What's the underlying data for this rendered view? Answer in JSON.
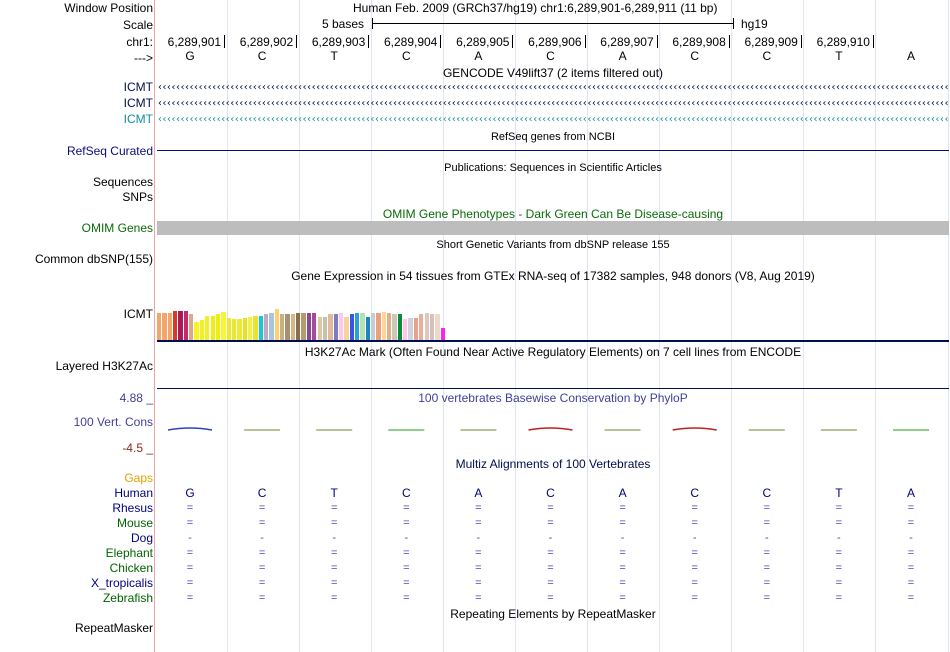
{
  "labels": {
    "window_position": "Window Position",
    "scale": "Scale",
    "chrom": "chr1:",
    "strand": "--->",
    "icmt_1": "ICMT",
    "icmt_2": "ICMT",
    "icmt_3": "ICMT",
    "refseq": "RefSeq Curated",
    "sequences": "Sequences",
    "snps": "SNPs",
    "omim": "OMIM Genes",
    "dbsnp": "Common dbSNP(155)",
    "gtex_gene": "ICMT",
    "h3k27ac": "Layered H3K27Ac",
    "cons_max": "4.88 _",
    "cons_label": "100 Vert. Cons",
    "cons_min": "-4.5 _",
    "gaps": "Gaps",
    "repeatmasker": "RepeatMasker"
  },
  "header": {
    "assembly_text": "Human Feb. 2009 (GRCh37/hg19)   chr1:6,289,901-6,289,911 (11 bp)",
    "scale_text": "5 bases",
    "scale_db": "hg19"
  },
  "positions": [
    "6,289,901",
    "6,289,902",
    "6,289,903",
    "6,289,904",
    "6,289,905",
    "6,289,906",
    "6,289,907",
    "6,289,908",
    "6,289,909",
    "6,289,910"
  ],
  "sequence": [
    "G",
    "C",
    "T",
    "C",
    "A",
    "C",
    "A",
    "C",
    "C",
    "T",
    "A"
  ],
  "track_titles": {
    "gencode": "GENCODE V49lift37 (2 items filtered out)",
    "refseq": "RefSeq genes from NCBI",
    "publications": "Publications: Sequences in Scientific Articles",
    "omim": "OMIM Gene Phenotypes - Dark Green Can Be Disease-causing",
    "dbsnp": "Short Genetic Variants from dbSNP release 155",
    "gtex": "Gene Expression in 54 tissues from GTEx RNA-seq of 17382 samples, 948 donors (V8, Aug 2019)",
    "h3k27ac": "H3K27Ac Mark (Often Found Near Active Regulatory Elements) on 7 cell lines from ENCODE",
    "phylop": "100 vertebrates Basewise Conservation by PhyloP",
    "multiz": "Multiz Alignments of 100 Vertebrates",
    "repeatmasker": "Repeating Elements by RepeatMasker"
  },
  "gtex_values": [
    0.94,
    0.94,
    0.94,
    1.0,
    0.98,
    0.98,
    0.9,
    0.62,
    0.7,
    0.82,
    0.82,
    0.9,
    0.95,
    0.76,
    0.72,
    0.72,
    0.74,
    0.78,
    0.82,
    0.82,
    0.9,
    0.92,
    1.05,
    0.88,
    0.9,
    0.88,
    0.92,
    0.92,
    0.92,
    0.92,
    0.8,
    0.78,
    0.88,
    0.9,
    0.92,
    0.78,
    0.9,
    0.92,
    0.94,
    0.8,
    0.94,
    0.92,
    0.95,
    0.92,
    0.9,
    0.88,
    0.72,
    0.76,
    0.76,
    0.9,
    0.92,
    0.9,
    0.88,
    0.42
  ],
  "gtex_colors": [
    "#f2a66a",
    "#f2a66a",
    "#f2a66a",
    "#d63a2a",
    "#aa1a55",
    "#c42a6a",
    "#d9a98a",
    "#f5f522",
    "#f0f022",
    "#f0f022",
    "#eeee11",
    "#eeee11",
    "#f5f53a",
    "#eaea33",
    "#e8e833",
    "#ebeb33",
    "#e4e422",
    "#f0f04a",
    "#e6e62a",
    "#1ac9c9",
    "#c0a8c8",
    "#a8c4e0",
    "#ffd070",
    "#c8b080",
    "#a89070",
    "#d0b888",
    "#8c6e4e",
    "#b89a6e",
    "#8a4a90",
    "#a8489a",
    "#ddc6a8",
    "#c8c0aa",
    "#e0b89a",
    "#7d7dbe",
    "#ffc8ea",
    "#f9d39e",
    "#3a55e0",
    "#2a9fdc",
    "#b4e2b0",
    "#1a86c8",
    "#c8ccd4",
    "#eaa07c",
    "#ffd59a",
    "#deb08c",
    "#ccc8b8",
    "#0c8a3a",
    "#ffc8ea",
    "#d0d4da",
    "#eaa08a",
    "#e8b098",
    "#dcc8c0",
    "#d8c0b8",
    "#eed8c8",
    "#ff22ee"
  ],
  "multiz_species": [
    {
      "name": "Human",
      "color": "#000080",
      "dash": false
    },
    {
      "name": "Rhesus",
      "color": "#000080",
      "dash": false
    },
    {
      "name": "Mouse",
      "color": "#006400",
      "dash": false
    },
    {
      "name": "Dog",
      "color": "#000080",
      "dash": true
    },
    {
      "name": "Elephant",
      "color": "#006400",
      "dash": false
    },
    {
      "name": "Chicken",
      "color": "#006400",
      "dash": false
    },
    {
      "name": "X_tropicalis",
      "color": "#000080",
      "dash": false
    },
    {
      "name": "Zebrafish",
      "color": "#006400",
      "dash": false
    }
  ],
  "multiz_eq": "=",
  "multiz_dash": "-",
  "colors": {
    "gencode_dark": "#000d4f",
    "gencode_teal": "#0e8fa3",
    "refseq": "#0c0c78",
    "omim_bar": "#bdbdbd",
    "omim_text": "#0a6a0a",
    "phylop_text": "#3f3f9a",
    "cons_min": "#8a2a1a",
    "gaps": "#e5a000"
  }
}
